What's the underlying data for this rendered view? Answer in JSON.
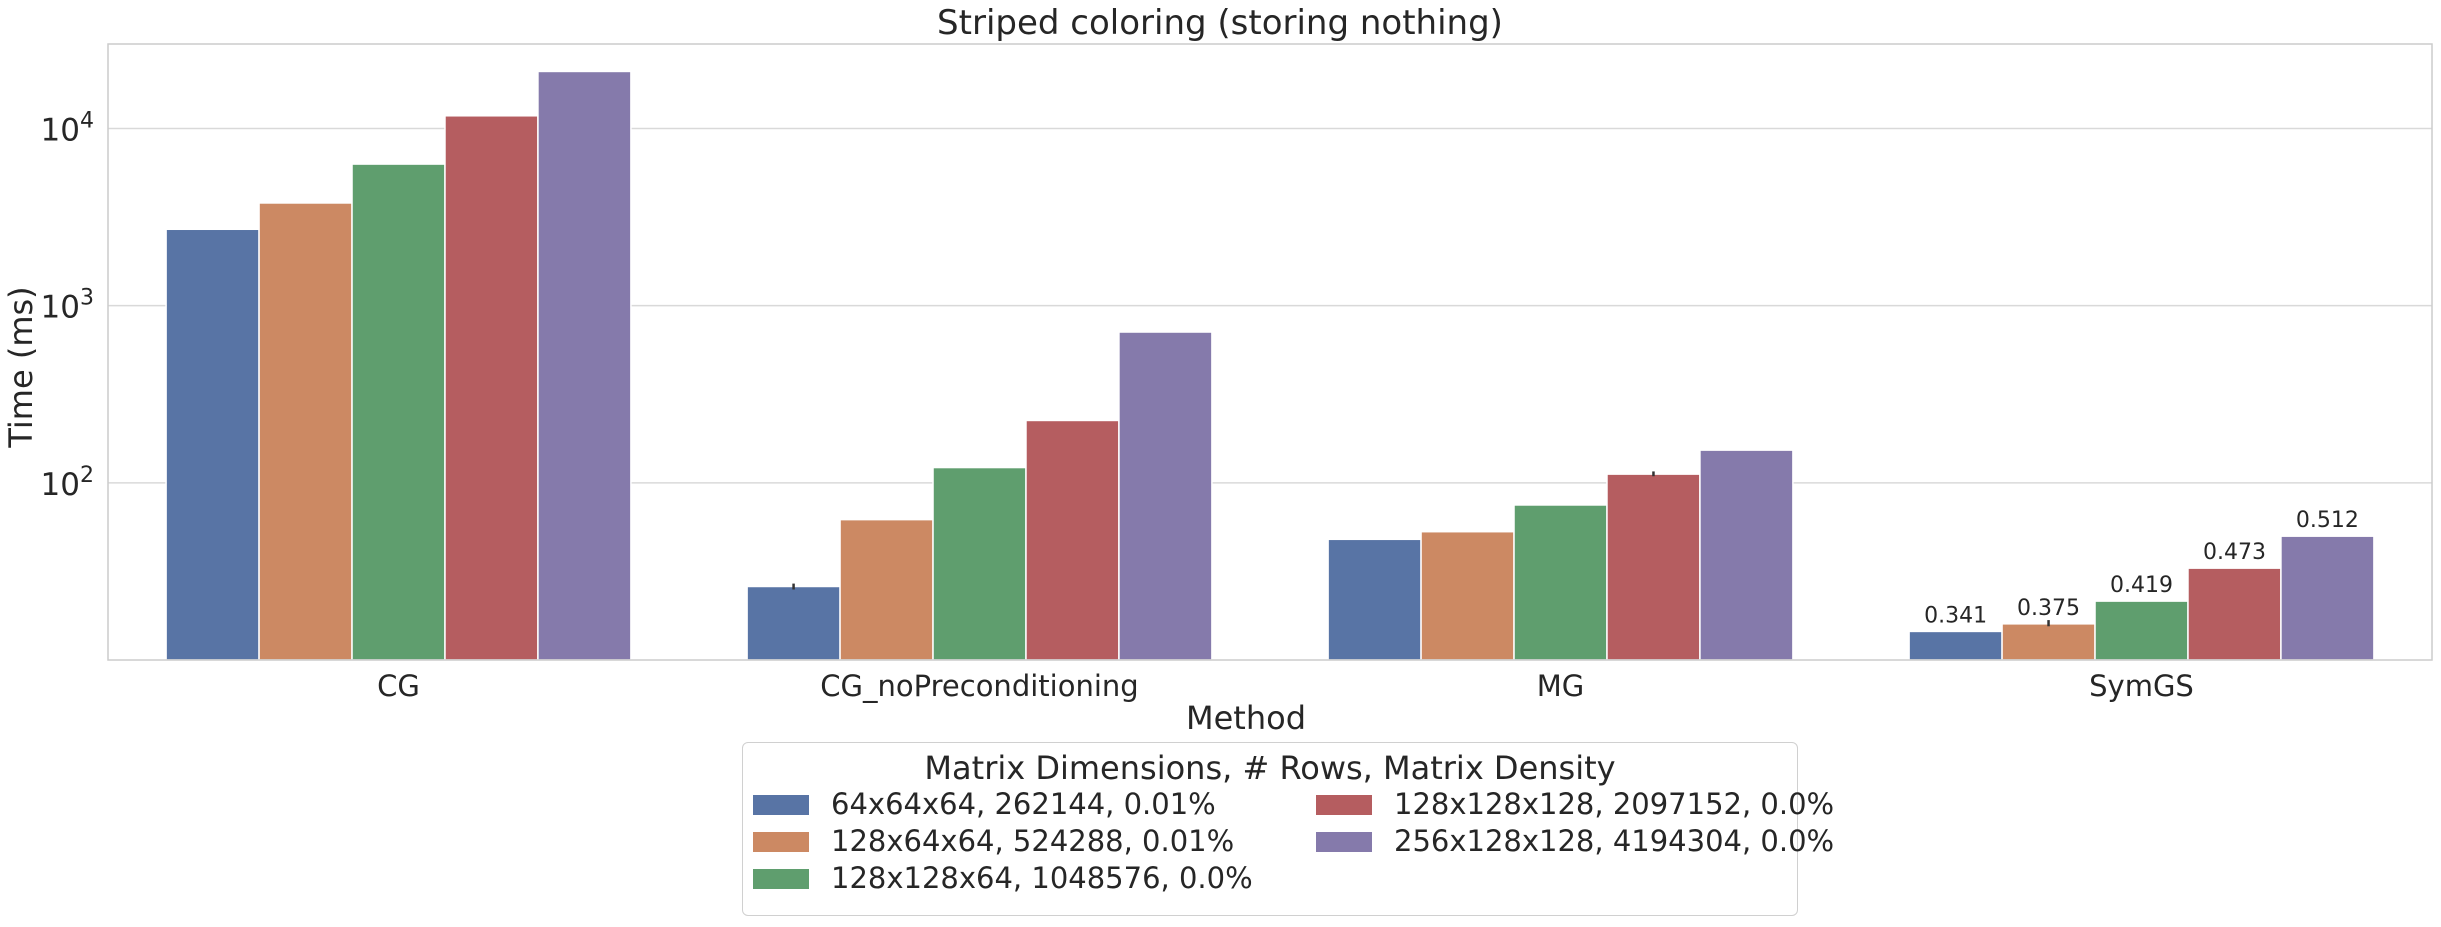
{
  "chart_data": {
    "type": "bar",
    "title": "Striped coloring (storing nothing)",
    "xlabel": "Method",
    "ylabel": "Time (ms)",
    "yscale": "log",
    "ylim": [
      10,
      30000
    ],
    "yticks": [
      {
        "value": 100,
        "base": "10",
        "exp": "2"
      },
      {
        "value": 1000,
        "base": "10",
        "exp": "3"
      },
      {
        "value": 10000,
        "base": "10",
        "exp": "4"
      }
    ],
    "grid": true,
    "categories": [
      "CG",
      "CG_noPreconditioning",
      "MG",
      "SymGS"
    ],
    "series": [
      {
        "name": "64x64x64, 262144, 0.01%",
        "color": "#5874a5",
        "values": [
          2700,
          26,
          48,
          14.5
        ]
      },
      {
        "name": "128x64x64, 524288, 0.01%",
        "color": "#cc8963",
        "values": [
          3800,
          62,
          53,
          16
        ]
      },
      {
        "name": "128x128x64, 1048576, 0.0%",
        "color": "#5f9e6e",
        "values": [
          6300,
          122,
          75,
          21.5
        ]
      },
      {
        "name": "128x128x128, 2097152, 0.0%",
        "color": "#b55d60",
        "values": [
          11800,
          225,
          112,
          33
        ]
      },
      {
        "name": "256x128x128, 4194304, 0.0%",
        "color": "#857aab",
        "values": [
          21000,
          710,
          153,
          50
        ]
      }
    ],
    "annotations": [
      {
        "category": "SymGS",
        "series": 0,
        "text": "0.341"
      },
      {
        "category": "SymGS",
        "series": 1,
        "text": "0.375"
      },
      {
        "category": "SymGS",
        "series": 2,
        "text": "0.419"
      },
      {
        "category": "SymGS",
        "series": 3,
        "text": "0.473"
      },
      {
        "category": "SymGS",
        "series": 4,
        "text": "0.512"
      }
    ],
    "error_bars": [
      {
        "category": "CG_noPreconditioning",
        "series": 0,
        "low": 25,
        "high": 27
      },
      {
        "category": "MG",
        "series": 3,
        "low": 109,
        "high": 116
      },
      {
        "category": "SymGS",
        "series": 1,
        "low": 15.5,
        "high": 16.8
      }
    ],
    "legend": {
      "title": "Matrix Dimensions, # Rows, Matrix Density",
      "placement": "below",
      "columns": 2
    }
  }
}
